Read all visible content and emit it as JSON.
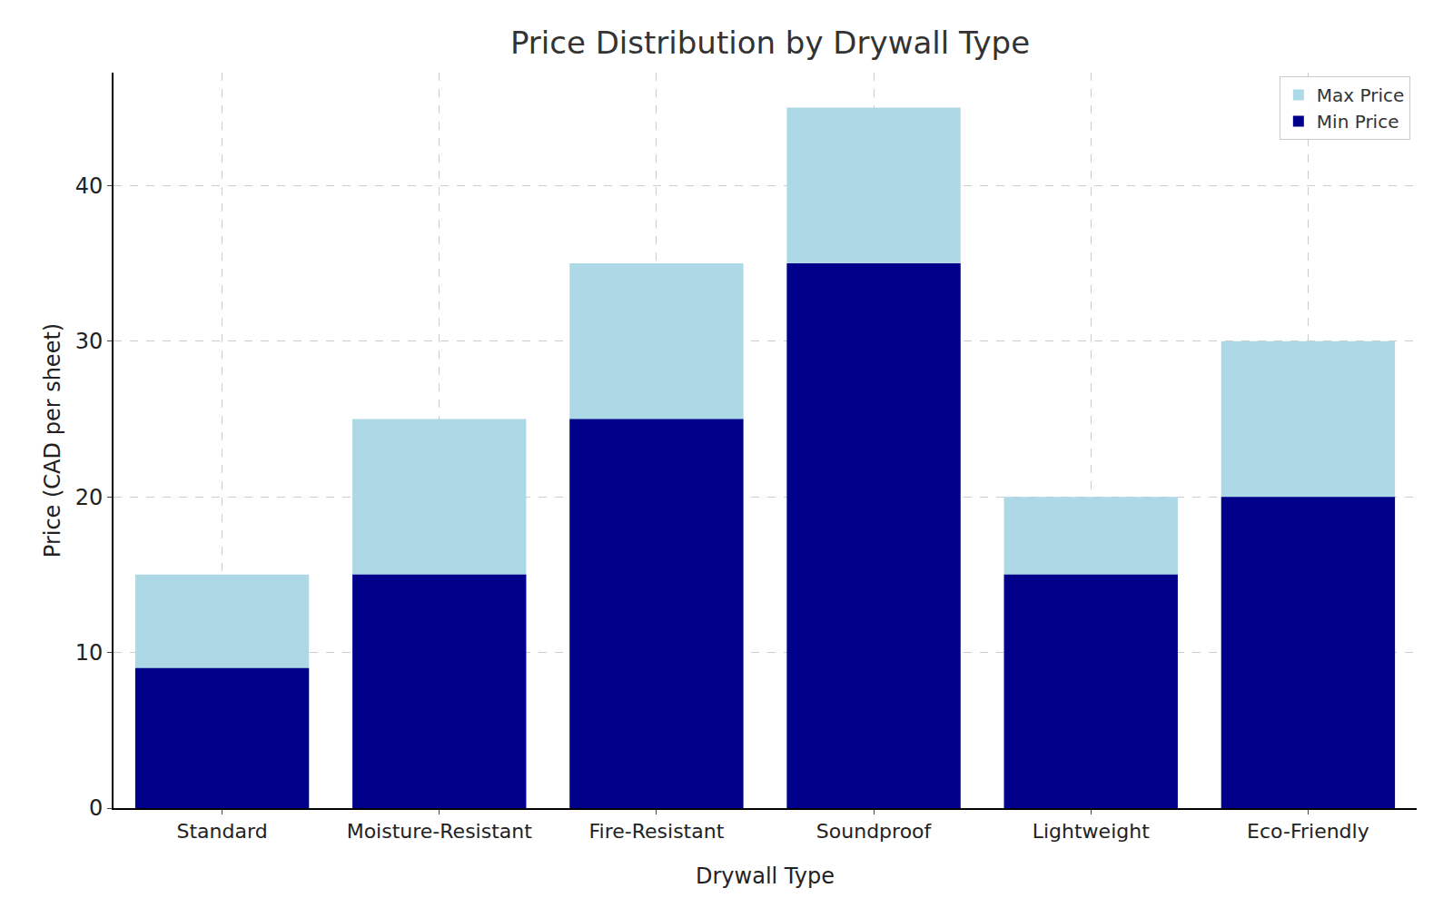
{
  "chart_data": {
    "type": "bar",
    "title": "Price Distribution by Drywall Type",
    "x_label": "Drywall Type",
    "y_label": "Price (CAD per sheet)",
    "categories": [
      "Standard",
      "Moisture-Resistant",
      "Fire-Resistant",
      "Soundproof",
      "Lightweight",
      "Eco-Friendly"
    ],
    "series": [
      {
        "name": "Max Price",
        "color": "#add8e6",
        "values": [
          15,
          25,
          35,
          45,
          20,
          30
        ]
      },
      {
        "name": "Min Price",
        "color": "#00008b",
        "values": [
          9,
          15,
          25,
          35,
          15,
          20
        ]
      }
    ],
    "stacked": false,
    "ylim": [
      0,
      47.25
    ],
    "yticks": [
      0,
      10,
      20,
      30,
      40
    ],
    "grid": true,
    "legend": "upper right"
  }
}
